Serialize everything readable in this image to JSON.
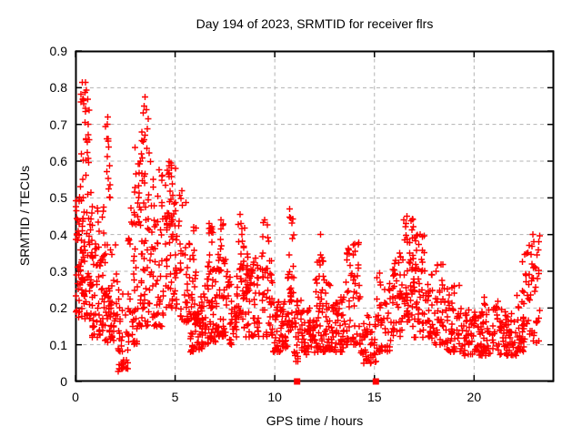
{
  "chart_data": {
    "type": "scatter",
    "title": "Day 194 of 2023, SRMTID for receiver flrs",
    "xlabel": "GPS time / hours",
    "ylabel": "SRMTID / TECUs",
    "xlim": [
      0,
      24
    ],
    "ylim": [
      0,
      0.9
    ],
    "xticks": [
      0,
      5,
      10,
      15,
      20
    ],
    "yticks": [
      0,
      0.1,
      0.2,
      0.3,
      0.4,
      0.5,
      0.6,
      0.7,
      0.8,
      0.9
    ],
    "grid": "dashed",
    "legend": "none",
    "marker": "plus",
    "marker_color": "#ff0000",
    "grid_color": "#b3b3b3",
    "frame_color": "#000000",
    "background": "#ffffff",
    "seed": 194,
    "clusters_format": "[x_start_h, x_end_h, y_min_TECU, y_max_TECU, n_points, skew_exponent]",
    "clusters": [
      [
        0.0,
        0.8,
        0.17,
        0.52,
        100,
        1.6
      ],
      [
        0.25,
        0.7,
        0.5,
        0.82,
        26,
        1.0
      ],
      [
        0.8,
        1.45,
        0.12,
        0.48,
        70,
        1.5
      ],
      [
        1.5,
        1.75,
        0.5,
        0.73,
        12,
        1.0
      ],
      [
        1.45,
        2.1,
        0.1,
        0.38,
        55,
        1.4
      ],
      [
        2.1,
        2.65,
        0.03,
        0.28,
        38,
        1.2
      ],
      [
        2.65,
        3.15,
        0.1,
        0.5,
        45,
        1.4
      ],
      [
        2.95,
        3.2,
        0.5,
        0.66,
        8,
        1.0
      ],
      [
        3.15,
        3.8,
        0.15,
        0.6,
        60,
        1.3
      ],
      [
        3.3,
        3.7,
        0.6,
        0.78,
        12,
        1.0
      ],
      [
        3.8,
        4.45,
        0.15,
        0.58,
        55,
        1.4
      ],
      [
        4.45,
        5.15,
        0.2,
        0.46,
        40,
        1.3
      ],
      [
        4.5,
        5.05,
        0.42,
        0.6,
        32,
        1.0
      ],
      [
        5.15,
        5.75,
        0.16,
        0.52,
        42,
        1.4
      ],
      [
        5.75,
        6.45,
        0.08,
        0.24,
        70,
        1.2
      ],
      [
        5.8,
        6.05,
        0.25,
        0.45,
        10,
        1.0
      ],
      [
        6.45,
        7.05,
        0.1,
        0.32,
        50,
        1.5
      ],
      [
        6.6,
        6.9,
        0.25,
        0.43,
        14,
        1.0
      ],
      [
        7.05,
        7.7,
        0.12,
        0.36,
        50,
        1.5
      ],
      [
        7.25,
        7.45,
        0.36,
        0.44,
        6,
        1.0
      ],
      [
        7.7,
        8.15,
        0.1,
        0.3,
        36,
        1.4
      ],
      [
        8.15,
        8.5,
        0.14,
        0.46,
        34,
        1.2
      ],
      [
        8.5,
        9.3,
        0.12,
        0.36,
        62,
        1.5
      ],
      [
        9.35,
        9.9,
        0.12,
        0.44,
        48,
        1.3
      ],
      [
        9.9,
        10.3,
        0.08,
        0.24,
        30,
        1.4
      ],
      [
        10.3,
        10.65,
        0.08,
        0.22,
        28,
        1.3
      ],
      [
        10.65,
        10.95,
        0.12,
        0.47,
        36,
        1.1
      ],
      [
        10.95,
        11.35,
        0.05,
        0.25,
        26,
        1.4
      ],
      [
        11.35,
        12.05,
        0.07,
        0.2,
        52,
        1.3
      ],
      [
        12.05,
        12.45,
        0.08,
        0.35,
        40,
        1.6
      ],
      [
        12.45,
        12.8,
        0.08,
        0.28,
        28,
        1.5
      ],
      [
        12.8,
        13.5,
        0.08,
        0.23,
        55,
        1.4
      ],
      [
        13.5,
        14.3,
        0.1,
        0.38,
        58,
        1.7
      ],
      [
        14.3,
        15.1,
        0.05,
        0.18,
        48,
        1.3
      ],
      [
        15.1,
        15.9,
        0.08,
        0.3,
        48,
        1.6
      ],
      [
        15.9,
        16.45,
        0.12,
        0.36,
        42,
        1.4
      ],
      [
        16.45,
        16.95,
        0.15,
        0.45,
        48,
        1.3
      ],
      [
        16.95,
        17.6,
        0.12,
        0.4,
        52,
        1.4
      ],
      [
        17.6,
        18.5,
        0.1,
        0.33,
        58,
        1.7
      ],
      [
        18.5,
        19.4,
        0.08,
        0.27,
        58,
        1.6
      ],
      [
        19.4,
        20.3,
        0.07,
        0.2,
        58,
        1.4
      ],
      [
        20.3,
        21.2,
        0.07,
        0.23,
        58,
        1.5
      ],
      [
        21.2,
        22.1,
        0.07,
        0.2,
        58,
        1.4
      ],
      [
        22.1,
        22.5,
        0.08,
        0.25,
        30,
        1.5
      ],
      [
        22.4,
        23.3,
        0.1,
        0.4,
        55,
        1.3
      ]
    ],
    "notable_points": [
      [
        0.5,
        0.815
      ],
      [
        0.38,
        0.77
      ],
      [
        0.42,
        0.765
      ],
      [
        0.5,
        0.735
      ],
      [
        0.47,
        0.705
      ],
      [
        0.3,
        0.62
      ],
      [
        1.62,
        0.72
      ],
      [
        1.6,
        0.7
      ],
      [
        1.65,
        0.655
      ],
      [
        3.5,
        0.775
      ],
      [
        3.45,
        0.75
      ],
      [
        3.55,
        0.74
      ],
      [
        2.3,
        0.035
      ],
      [
        2.45,
        0.04
      ],
      [
        2.14,
        0.027
      ],
      [
        5.93,
        0.41
      ],
      [
        6.7,
        0.43
      ],
      [
        7.3,
        0.44
      ],
      [
        8.25,
        0.455
      ],
      [
        8.3,
        0.43
      ],
      [
        9.5,
        0.44
      ],
      [
        10.75,
        0.47
      ],
      [
        10.8,
        0.445
      ],
      [
        12.3,
        0.4
      ],
      [
        12.3,
        0.345
      ],
      [
        14.0,
        0.375
      ],
      [
        13.95,
        0.345
      ],
      [
        16.62,
        0.45
      ],
      [
        16.58,
        0.43
      ],
      [
        17.3,
        0.4
      ],
      [
        22.95,
        0.4
      ],
      [
        23.0,
        0.38
      ]
    ],
    "square_points": [
      [
        11.12,
        0
      ],
      [
        15.07,
        0
      ]
    ]
  }
}
